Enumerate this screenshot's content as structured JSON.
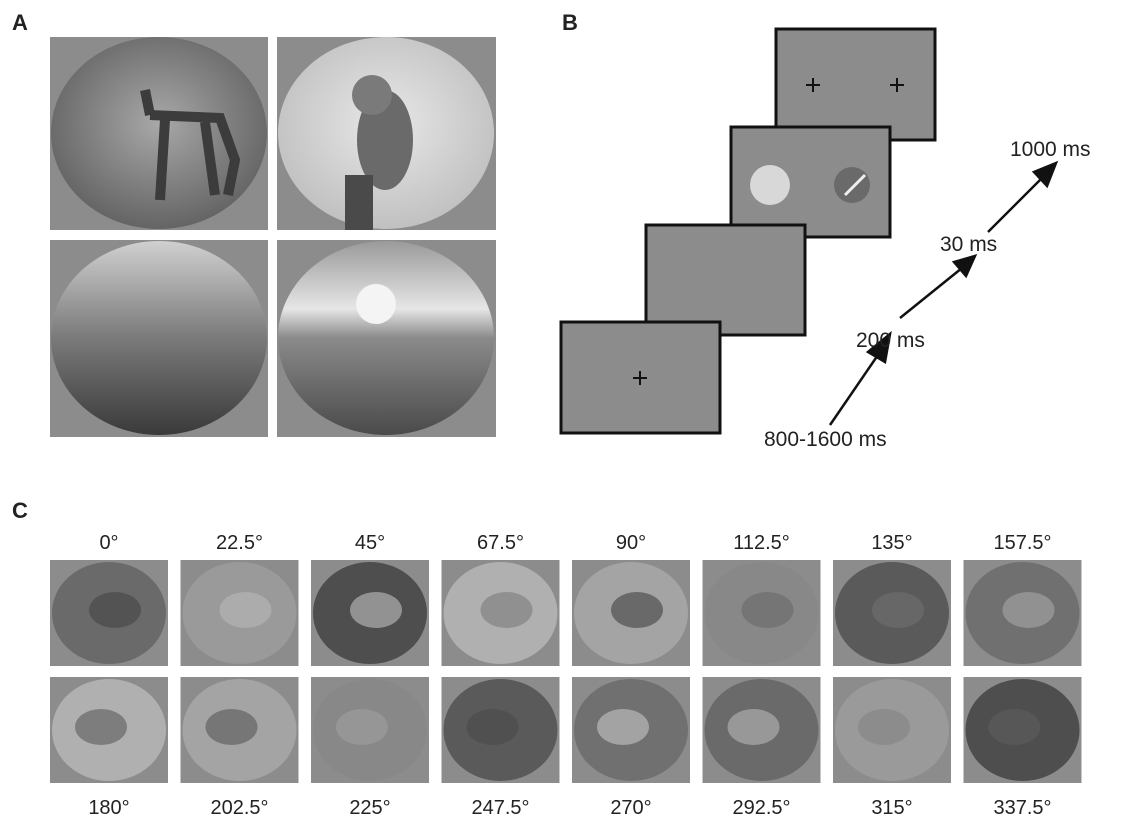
{
  "panel_a": {
    "label": "A"
  },
  "panel_b": {
    "label": "B",
    "durations": [
      "1000 ms",
      "30 ms",
      "200 ms",
      "800-1600 ms"
    ]
  },
  "panel_c": {
    "label": "C",
    "top_angles": [
      "0°",
      "22.5°",
      "45°",
      "67.5°",
      "90°",
      "112.5°",
      "135°",
      "157.5°"
    ],
    "bottom_angles": [
      "180°",
      "202.5°",
      "225°",
      "247.5°",
      "270°",
      "292.5°",
      "315°",
      "337.5°"
    ]
  }
}
